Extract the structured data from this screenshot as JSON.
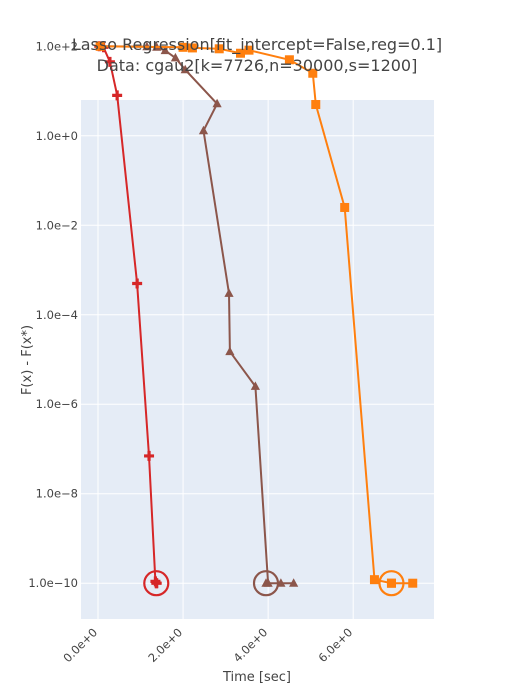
{
  "chart_data": {
    "type": "line",
    "title_line1": "Lasso Regression[fit_intercept=False,reg=0.1]",
    "title_line2": "Data: cgau2[k=7726,n=30000,s=1200]",
    "xlabel": "Time [sec]",
    "ylabel": "F(x) - F(x*)",
    "x_scale": "linear",
    "y_scale": "log",
    "xlim": [
      -0.4,
      7.9
    ],
    "ylim_log10": [
      -10.8,
      0.8
    ],
    "x_ticks": [
      {
        "value": 0,
        "label": "0.0e+0"
      },
      {
        "value": 2,
        "label": "2.0e+0"
      },
      {
        "value": 4,
        "label": "4.0e+0"
      },
      {
        "value": 6,
        "label": "6.0e+0"
      }
    ],
    "y_ticks": [
      {
        "exp": 2,
        "label": "1.0e+2"
      },
      {
        "exp": 0,
        "label": "1.0e+0"
      },
      {
        "exp": -2,
        "label": "1.0e−2"
      },
      {
        "exp": -4,
        "label": "1.0e−4"
      },
      {
        "exp": -6,
        "label": "1.0e−6"
      },
      {
        "exp": -8,
        "label": "1.0e−8"
      },
      {
        "exp": -10,
        "label": "1.0e−10"
      }
    ],
    "grid": true,
    "legend": "none",
    "series": [
      {
        "color": "#d62728",
        "marker": "cross",
        "x": [
          0.03,
          0.13,
          0.28,
          0.45,
          0.92,
          1.2,
          1.35,
          1.38
        ],
        "y": [
          100,
          95,
          45,
          8,
          0.0005,
          7e-08,
          1.1e-10,
          1e-10
        ],
        "final": {
          "x": 1.37,
          "y": 1e-10
        }
      },
      {
        "color": "#8c564b",
        "marker": "triangle",
        "x": [
          0.08,
          1.15,
          1.38,
          1.58,
          1.82,
          2.05,
          2.8,
          2.48,
          3.08,
          3.1,
          3.7,
          4.0,
          4.3,
          4.6
        ],
        "y": [
          100,
          98,
          95,
          80,
          55,
          30,
          5.2,
          1.3,
          0.0003,
          1.5e-05,
          2.5e-06,
          1e-10,
          1e-10,
          1e-10
        ],
        "final": {
          "x": 3.95,
          "y": 1e-10
        }
      },
      {
        "color": "#ff7f0e",
        "marker": "square",
        "x": [
          0.05,
          2.0,
          2.22,
          2.85,
          3.35,
          3.55,
          4.5,
          5.05,
          5.12,
          5.8,
          6.5,
          6.9,
          7.4
        ],
        "y": [
          100,
          95,
          92,
          88,
          70,
          82,
          50,
          25,
          5,
          0.025,
          1.2e-10,
          1e-10,
          1e-10
        ],
        "final": {
          "x": 6.9,
          "y": 1e-10
        }
      }
    ]
  }
}
